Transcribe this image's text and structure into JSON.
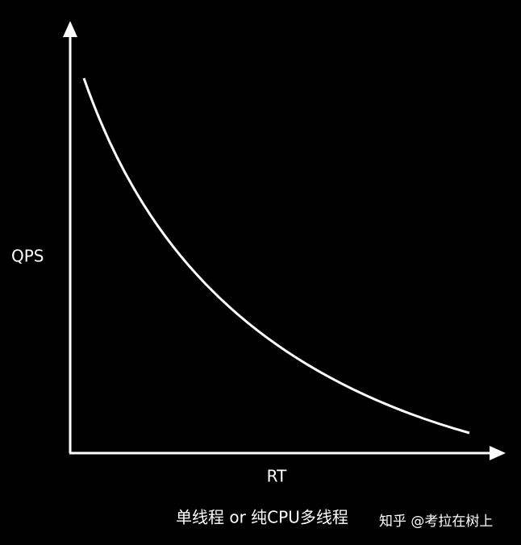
{
  "y_axis_label": "QPS",
  "x_axis_label": "RT",
  "caption": "单线程 or 纯CPU多线程",
  "watermark": "知乎 @考拉在树上"
}
